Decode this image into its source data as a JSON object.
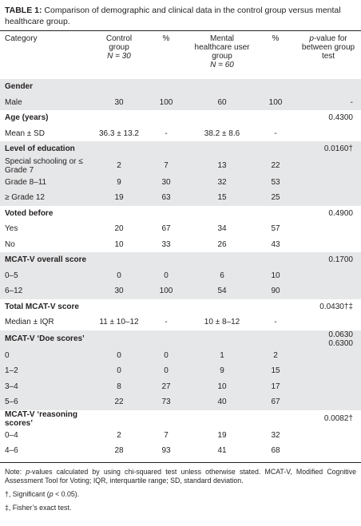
{
  "header": {
    "label": "TABLE 1:",
    "title": "Comparison of demographic and clinical data in the control group versus mental healthcare group."
  },
  "table": {
    "columns": [
      {
        "key": "category",
        "parts": [
          {
            "text": "Category"
          }
        ]
      },
      {
        "key": "control",
        "parts": [
          {
            "text": "Control group"
          },
          {
            "text": "N = 30",
            "italic": true
          }
        ]
      },
      {
        "key": "control_pct",
        "parts": [
          {
            "text": "%"
          }
        ]
      },
      {
        "key": "mhu",
        "parts": [
          {
            "text": "Mental healthcare user group"
          },
          {
            "text": "N = 60",
            "italic": true
          }
        ]
      },
      {
        "key": "mhu_pct",
        "parts": [
          {
            "text": "%"
          }
        ]
      },
      {
        "key": "p",
        "parts": [
          {
            "text": "p",
            "italic": true
          },
          {
            "text": "-value for between group test"
          }
        ]
      }
    ],
    "rows": [
      {
        "category": "Gender",
        "section": true,
        "shaded": true
      },
      {
        "category": "Male",
        "control": "30",
        "control_pct": "100",
        "mhu": "60",
        "mhu_pct": "100",
        "p": "-",
        "shaded": true
      },
      {
        "category": "Age (years)",
        "section": true,
        "p": "0.4300"
      },
      {
        "category": "Mean ± SD",
        "control": "36.3 ± 13.2",
        "control_pct": "-",
        "mhu": "38.2 ± 8.6",
        "mhu_pct": "-"
      },
      {
        "category": "Level of education",
        "section": true,
        "p": "0.0160†",
        "shaded": true
      },
      {
        "category": "Special schooling or ≤ Grade 7",
        "control": "2",
        "control_pct": "7",
        "mhu": "13",
        "mhu_pct": "22",
        "shaded": true
      },
      {
        "category": "Grade 8–11",
        "control": "9",
        "control_pct": "30",
        "mhu": "32",
        "mhu_pct": "53",
        "shaded": true
      },
      {
        "category": "≥ Grade 12",
        "control": "19",
        "control_pct": "63",
        "mhu": "15",
        "mhu_pct": "25",
        "shaded": true
      },
      {
        "category": "Voted before",
        "section": true,
        "p": "0.4900"
      },
      {
        "category": "Yes",
        "control": "20",
        "control_pct": "67",
        "mhu": "34",
        "mhu_pct": "57"
      },
      {
        "category": "No",
        "control": "10",
        "control_pct": "33",
        "mhu": "26",
        "mhu_pct": "43"
      },
      {
        "category": "MCAT-V overall score",
        "section": true,
        "p": "0.1700",
        "shaded": true
      },
      {
        "category": "0–5",
        "control": "0",
        "control_pct": "0",
        "mhu": "6",
        "mhu_pct": "10",
        "shaded": true
      },
      {
        "category": "6–12",
        "control": "30",
        "control_pct": "100",
        "mhu": "54",
        "mhu_pct": "90",
        "shaded": true
      },
      {
        "category": "Total MCAT-V score",
        "section": true,
        "p": "0.0430†‡"
      },
      {
        "category": "Median ± IQR",
        "control": "11 ± 10–12",
        "control_pct": "-",
        "mhu": "10 ± 8–12",
        "mhu_pct": "-"
      },
      {
        "category": "MCAT-V ‘Doe scores’",
        "section": true,
        "p": [
          "0.0630",
          "0.6300"
        ],
        "shaded": true
      },
      {
        "category": "0",
        "control": "0",
        "control_pct": "0",
        "mhu": "1",
        "mhu_pct": "2",
        "shaded": true
      },
      {
        "category": "1–2",
        "control": "0",
        "control_pct": "0",
        "mhu": "9",
        "mhu_pct": "15",
        "shaded": true
      },
      {
        "category": "3–4",
        "control": "8",
        "control_pct": "27",
        "mhu": "10",
        "mhu_pct": "17",
        "shaded": true
      },
      {
        "category": "5–6",
        "control": "22",
        "control_pct": "73",
        "mhu": "40",
        "mhu_pct": "67",
        "shaded": true
      },
      {
        "category": "MCAT-V ‘reasoning scores’",
        "section": true,
        "p": "0.0082†"
      },
      {
        "category": "0–4",
        "control": "2",
        "control_pct": "7",
        "mhu": "19",
        "mhu_pct": "32"
      },
      {
        "category": "4–6",
        "control": "28",
        "control_pct": "93",
        "mhu": "41",
        "mhu_pct": "68"
      }
    ]
  },
  "notes": [
    [
      {
        "text": "Note: "
      },
      {
        "text": "p",
        "italic": true
      },
      {
        "text": "-values calculated by using chi-squared test unless otherwise stated. MCAT-V, Modified Cognitive Assessment Tool for Voting; IQR, interquartile range; SD, standard deviation."
      }
    ],
    [
      {
        "text": "†, Significant ("
      },
      {
        "text": "p",
        "italic": true
      },
      {
        "text": " < 0.05)."
      }
    ],
    [
      {
        "text": "‡, Fisher’s exact test."
      }
    ]
  ]
}
